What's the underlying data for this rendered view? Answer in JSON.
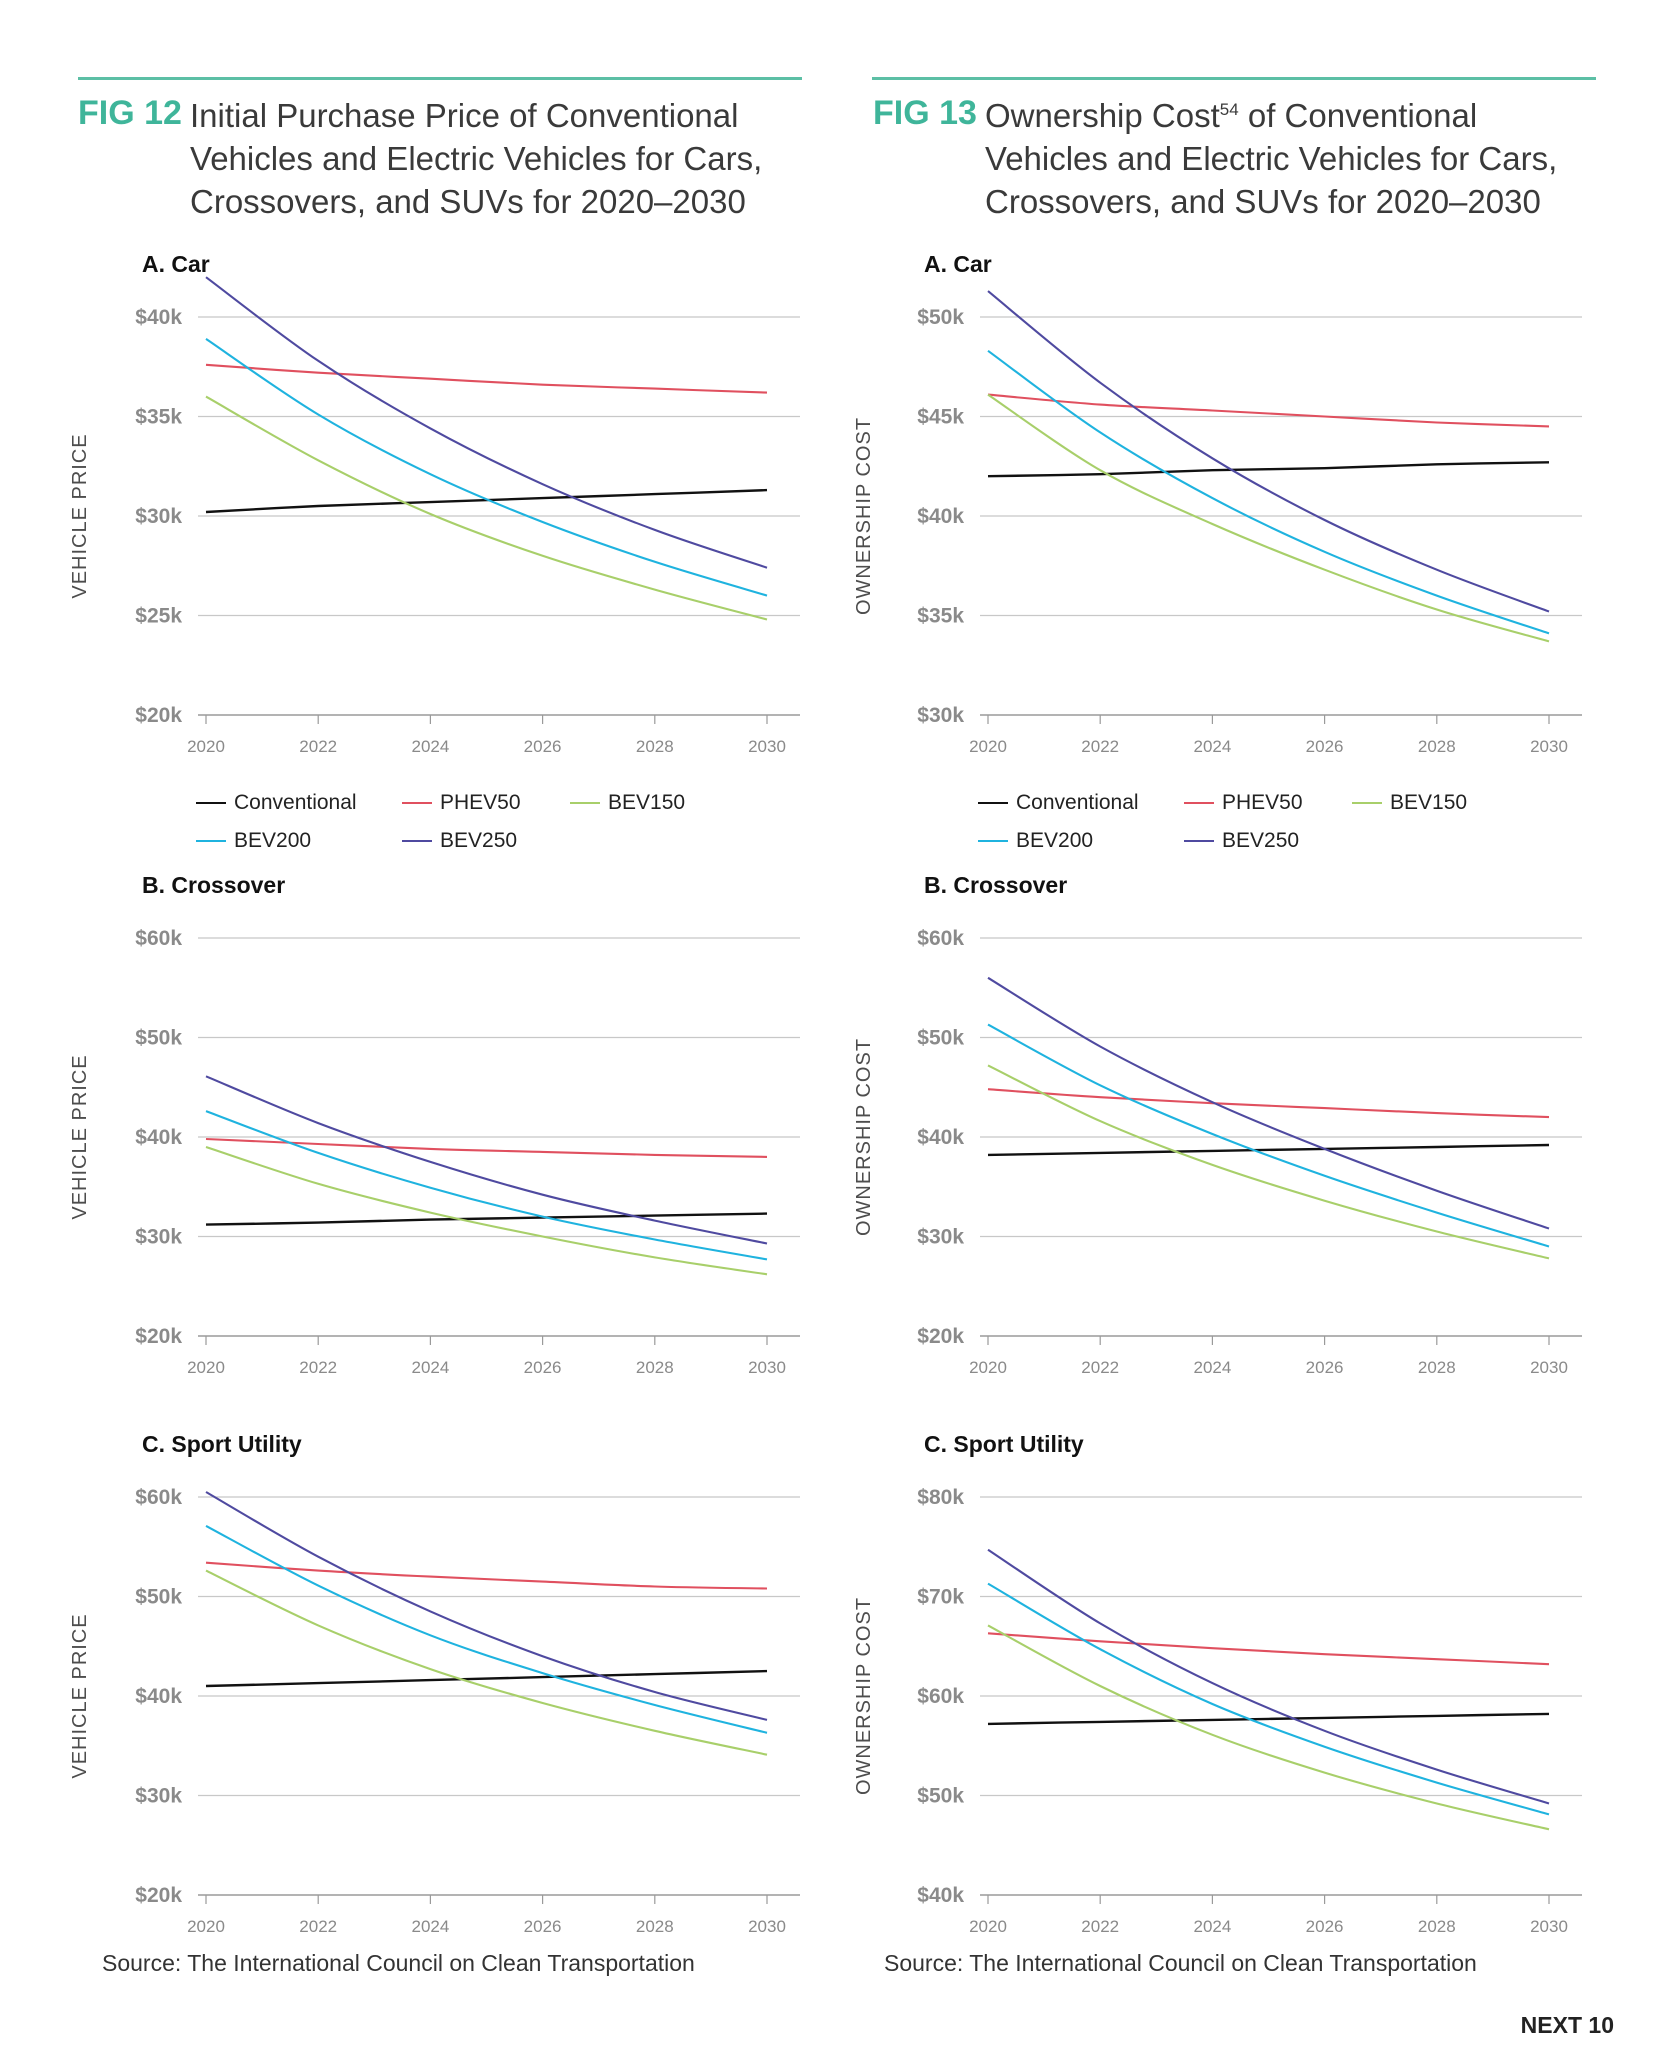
{
  "figures": [
    {
      "number": "FIG 12",
      "title_pre": "Initial Purchase Price of Conventional Vehicles and Electric Vehicles for Cars, Crossovers, and SUVs for 2020–2030",
      "title_sup": "",
      "title_post": "",
      "source": "Source: The International Council on Clean Transportation"
    },
    {
      "number": "FIG 13",
      "title_pre": "Ownership Cost",
      "title_sup": "54",
      "title_post": " of Conventional Vehicles and Electric Vehicles for Cars, Crossovers, and SUVs for 2020–2030",
      "source": "Source: The International Council on Clean Transportation"
    }
  ],
  "legend": [
    {
      "name": "Conventional",
      "color": "#111111"
    },
    {
      "name": "PHEV50",
      "color": "#e0505f"
    },
    {
      "name": "BEV150",
      "color": "#a8cf6a"
    },
    {
      "name": "BEV200",
      "color": "#1fb3df"
    },
    {
      "name": "BEV250",
      "color": "#4f4aa0"
    }
  ],
  "footer": {
    "brand": "NEXT 10"
  },
  "chart_data": [
    {
      "id": "fig12-car",
      "type": "line",
      "title": "A. Car",
      "ylabel": "VEHICLE PRICE",
      "ylim": [
        20,
        40
      ],
      "yticks": [
        {
          "v": 20,
          "label": "$20k"
        },
        {
          "v": 25,
          "label": "$25k"
        },
        {
          "v": 30,
          "label": "$30k"
        },
        {
          "v": 35,
          "label": "$35k"
        },
        {
          "v": 40,
          "label": "$40k"
        }
      ],
      "xlim": [
        2020,
        2030
      ],
      "xticks": [
        "2020",
        "2022",
        "2024",
        "2026",
        "2028",
        "2030"
      ],
      "x": [
        2020,
        2022,
        2024,
        2026,
        2028,
        2030
      ],
      "series": [
        {
          "name": "Conventional",
          "values": [
            30.2,
            30.5,
            30.7,
            30.9,
            31.1,
            31.3
          ]
        },
        {
          "name": "PHEV50",
          "values": [
            37.6,
            37.2,
            36.9,
            36.6,
            36.4,
            36.2
          ]
        },
        {
          "name": "BEV150",
          "values": [
            36.0,
            32.8,
            30.1,
            28.0,
            26.3,
            24.8
          ]
        },
        {
          "name": "BEV200",
          "values": [
            38.9,
            35.1,
            32.1,
            29.7,
            27.7,
            26.0
          ]
        },
        {
          "name": "BEV250",
          "values": [
            42.0,
            37.8,
            34.4,
            31.6,
            29.3,
            27.4
          ]
        }
      ]
    },
    {
      "id": "fig13-car",
      "type": "line",
      "title": "A. Car",
      "ylabel": "OWNERSHIP COST",
      "ylim": [
        30,
        50
      ],
      "yticks": [
        {
          "v": 30,
          "label": "$30k"
        },
        {
          "v": 35,
          "label": "$35k"
        },
        {
          "v": 40,
          "label": "$40k"
        },
        {
          "v": 45,
          "label": "$45k"
        },
        {
          "v": 50,
          "label": "$50k"
        }
      ],
      "xlim": [
        2020,
        2030
      ],
      "xticks": [
        "2020",
        "2022",
        "2024",
        "2026",
        "2028",
        "2030"
      ],
      "x": [
        2020,
        2022,
        2024,
        2026,
        2028,
        2030
      ],
      "series": [
        {
          "name": "Conventional",
          "values": [
            42.0,
            42.1,
            42.3,
            42.4,
            42.6,
            42.7
          ]
        },
        {
          "name": "PHEV50",
          "values": [
            46.1,
            45.6,
            45.3,
            45.0,
            44.7,
            44.5
          ]
        },
        {
          "name": "BEV150",
          "values": [
            46.1,
            42.3,
            39.6,
            37.3,
            35.3,
            33.7
          ]
        },
        {
          "name": "BEV200",
          "values": [
            48.3,
            44.2,
            40.9,
            38.2,
            36.0,
            34.1
          ]
        },
        {
          "name": "BEV250",
          "values": [
            51.3,
            46.7,
            42.9,
            39.8,
            37.3,
            35.2
          ]
        }
      ]
    },
    {
      "id": "fig12-crossover",
      "type": "line",
      "title": "B. Crossover",
      "ylabel": "VEHICLE PRICE",
      "ylim": [
        20,
        60
      ],
      "yticks": [
        {
          "v": 20,
          "label": "$20k"
        },
        {
          "v": 30,
          "label": "$30k"
        },
        {
          "v": 40,
          "label": "$40k"
        },
        {
          "v": 50,
          "label": "$50k"
        },
        {
          "v": 60,
          "label": "$60k"
        }
      ],
      "xlim": [
        2020,
        2030
      ],
      "xticks": [
        "2020",
        "2022",
        "2024",
        "2026",
        "2028",
        "2030"
      ],
      "x": [
        2020,
        2022,
        2024,
        2026,
        2028,
        2030
      ],
      "series": [
        {
          "name": "Conventional",
          "values": [
            31.2,
            31.4,
            31.7,
            31.9,
            32.1,
            32.3
          ]
        },
        {
          "name": "PHEV50",
          "values": [
            39.8,
            39.3,
            38.8,
            38.5,
            38.2,
            38.0
          ]
        },
        {
          "name": "BEV150",
          "values": [
            39.0,
            35.3,
            32.4,
            30.0,
            27.9,
            26.2
          ]
        },
        {
          "name": "BEV200",
          "values": [
            42.6,
            38.4,
            34.9,
            32.0,
            29.7,
            27.7
          ]
        },
        {
          "name": "BEV250",
          "values": [
            46.1,
            41.4,
            37.5,
            34.2,
            31.6,
            29.3
          ]
        }
      ]
    },
    {
      "id": "fig13-crossover",
      "type": "line",
      "title": "B. Crossover",
      "ylabel": "OWNERSHIP COST",
      "ylim": [
        20,
        60
      ],
      "yticks": [
        {
          "v": 20,
          "label": "$20k"
        },
        {
          "v": 30,
          "label": "$30k"
        },
        {
          "v": 40,
          "label": "$40k"
        },
        {
          "v": 50,
          "label": "$50k"
        },
        {
          "v": 60,
          "label": "$60k"
        }
      ],
      "xlim": [
        2020,
        2030
      ],
      "xticks": [
        "2020",
        "2022",
        "2024",
        "2026",
        "2028",
        "2030"
      ],
      "x": [
        2020,
        2022,
        2024,
        2026,
        2028,
        2030
      ],
      "series": [
        {
          "name": "Conventional",
          "values": [
            38.2,
            38.4,
            38.6,
            38.8,
            39.0,
            39.2
          ]
        },
        {
          "name": "PHEV50",
          "values": [
            44.8,
            44.0,
            43.4,
            42.9,
            42.4,
            42.0
          ]
        },
        {
          "name": "BEV150",
          "values": [
            47.2,
            41.6,
            37.2,
            33.6,
            30.5,
            27.8
          ]
        },
        {
          "name": "BEV200",
          "values": [
            51.3,
            45.2,
            40.3,
            36.1,
            32.4,
            29.0
          ]
        },
        {
          "name": "BEV250",
          "values": [
            56.0,
            49.1,
            43.5,
            38.8,
            34.6,
            30.8
          ]
        }
      ]
    },
    {
      "id": "fig12-suv",
      "type": "line",
      "title": "C. Sport Utility",
      "ylabel": "VEHICLE PRICE",
      "ylim": [
        20,
        60
      ],
      "yticks": [
        {
          "v": 20,
          "label": "$20k"
        },
        {
          "v": 30,
          "label": "$30k"
        },
        {
          "v": 40,
          "label": "$40k"
        },
        {
          "v": 50,
          "label": "$50k"
        },
        {
          "v": 60,
          "label": "$60k"
        }
      ],
      "xlim": [
        2020,
        2030
      ],
      "xticks": [
        "2020",
        "2022",
        "2024",
        "2026",
        "2028",
        "2030"
      ],
      "x": [
        2020,
        2022,
        2024,
        2026,
        2028,
        2030
      ],
      "series": [
        {
          "name": "Conventional",
          "values": [
            41.0,
            41.3,
            41.6,
            41.9,
            42.2,
            42.5
          ]
        },
        {
          "name": "PHEV50",
          "values": [
            53.4,
            52.6,
            52.0,
            51.5,
            51.0,
            50.8
          ]
        },
        {
          "name": "BEV150",
          "values": [
            52.6,
            47.1,
            42.7,
            39.3,
            36.5,
            34.1
          ]
        },
        {
          "name": "BEV200",
          "values": [
            57.1,
            51.1,
            46.1,
            42.3,
            39.1,
            36.3
          ]
        },
        {
          "name": "BEV250",
          "values": [
            60.5,
            54.0,
            48.5,
            44.0,
            40.4,
            37.6
          ]
        }
      ]
    },
    {
      "id": "fig13-suv",
      "type": "line",
      "title": "C. Sport Utility",
      "ylabel": "OWNERSHIP COST",
      "ylim": [
        40,
        80
      ],
      "yticks": [
        {
          "v": 40,
          "label": "$40k"
        },
        {
          "v": 50,
          "label": "$50k"
        },
        {
          "v": 60,
          "label": "$60k"
        },
        {
          "v": 70,
          "label": "$70k"
        },
        {
          "v": 80,
          "label": "$80k"
        }
      ],
      "xlim": [
        2020,
        2030
      ],
      "xticks": [
        "2020",
        "2022",
        "2024",
        "2026",
        "2028",
        "2030"
      ],
      "x": [
        2020,
        2022,
        2024,
        2026,
        2028,
        2030
      ],
      "series": [
        {
          "name": "Conventional",
          "values": [
            57.2,
            57.4,
            57.6,
            57.8,
            58.0,
            58.2
          ]
        },
        {
          "name": "PHEV50",
          "values": [
            66.3,
            65.5,
            64.8,
            64.2,
            63.7,
            63.2
          ]
        },
        {
          "name": "BEV150",
          "values": [
            67.1,
            61.0,
            56.1,
            52.3,
            49.2,
            46.6
          ]
        },
        {
          "name": "BEV200",
          "values": [
            71.3,
            64.7,
            59.2,
            54.9,
            51.3,
            48.1
          ]
        },
        {
          "name": "BEV250",
          "values": [
            74.7,
            67.3,
            61.3,
            56.5,
            52.6,
            49.2
          ]
        }
      ]
    }
  ]
}
